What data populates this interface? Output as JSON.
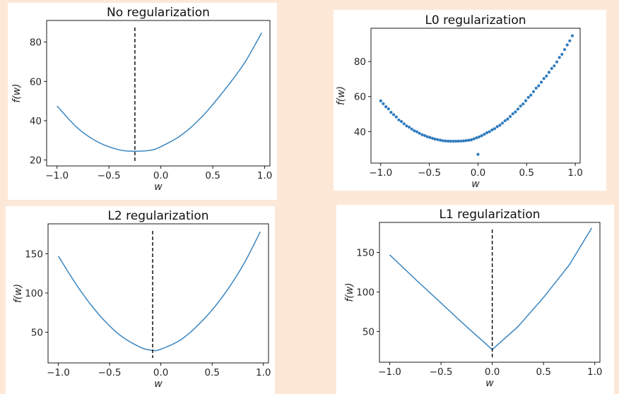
{
  "colors": {
    "background": "#fde8d8",
    "curve": "#3b86c0",
    "points": "#2f7bbd"
  },
  "chart_data": [
    {
      "id": "no-reg",
      "type": "line",
      "title": "No regularization",
      "xlabel": "w",
      "ylabel": "f(w)",
      "xlim": [
        -1.1,
        1.05
      ],
      "ylim": [
        17,
        91
      ],
      "xticks": [
        -1.0,
        -0.5,
        0.0,
        0.5,
        1.0
      ],
      "xtick_labels": [
        "−1.0",
        "−0.5",
        "0.0",
        "0.5",
        "1.0"
      ],
      "yticks": [
        20,
        40,
        60,
        80
      ],
      "ytick_labels": [
        "20",
        "40",
        "60",
        "80"
      ],
      "x": [
        -1.0,
        -0.8,
        -0.6,
        -0.4,
        -0.25,
        -0.1,
        0.0,
        0.2,
        0.4,
        0.6,
        0.8,
        0.97
      ],
      "y": [
        47.5,
        36.2,
        29.0,
        25.2,
        24.5,
        25.0,
        26.8,
        32.8,
        42.3,
        54.8,
        69.0,
        84.7
      ],
      "vline_x": -0.25
    },
    {
      "id": "l0-reg",
      "type": "scatter",
      "title": "L0 regularization",
      "xlabel": "w",
      "ylabel": "f(w)",
      "xlim": [
        -1.1,
        1.05
      ],
      "ylim": [
        22,
        99
      ],
      "xticks": [
        -1.0,
        -0.5,
        0.0,
        0.5,
        1.0
      ],
      "xtick_labels": [
        "−1.0",
        "−0.5",
        "0.0",
        "0.5",
        "1.0"
      ],
      "yticks": [
        40,
        60,
        80
      ],
      "ytick_labels": [
        "40",
        "60",
        "80"
      ],
      "x": [
        -1.0,
        -0.8,
        -0.6,
        -0.4,
        -0.25,
        -0.1,
        0.0,
        0.2,
        0.4,
        0.6,
        0.8,
        0.97
      ],
      "y": [
        57.5,
        46.2,
        39.0,
        35.2,
        34.5,
        35.0,
        36.8,
        42.8,
        52.3,
        64.8,
        79.0,
        94.7
      ],
      "outlier": {
        "x": 0.0,
        "y": 27.0
      },
      "n_points": 75
    },
    {
      "id": "l2-reg",
      "type": "line",
      "title": "L2 regularization",
      "xlabel": "w",
      "ylabel": "f(w)",
      "xlim": [
        -1.1,
        1.05
      ],
      "ylim": [
        11,
        188
      ],
      "xticks": [
        -1.0,
        -0.5,
        0.0,
        0.5,
        1.0
      ],
      "xtick_labels": [
        "−1.0",
        "−0.5",
        "0.0",
        "0.5",
        "1.0"
      ],
      "yticks": [
        50,
        100,
        150
      ],
      "ytick_labels": [
        "50",
        "100",
        "150"
      ],
      "x": [
        -1.0,
        -0.8,
        -0.6,
        -0.4,
        -0.2,
        -0.08,
        0.0,
        0.2,
        0.4,
        0.6,
        0.8,
        0.97
      ],
      "y": [
        147,
        106,
        72,
        46.5,
        31,
        27,
        28.5,
        41,
        64,
        95,
        135,
        178
      ],
      "vline_x": -0.08
    },
    {
      "id": "l1-reg",
      "type": "line",
      "title": "L1 regularization",
      "xlabel": "w",
      "ylabel": "f(w)",
      "xlim": [
        -1.1,
        1.05
      ],
      "ylim": [
        11,
        188
      ],
      "xticks": [
        -1.0,
        -0.5,
        0.0,
        0.5,
        1.0
      ],
      "xtick_labels": [
        "−1.0",
        "−0.5",
        "0.0",
        "0.5",
        "1.0"
      ],
      "yticks": [
        50,
        100,
        150
      ],
      "ytick_labels": [
        "50",
        "100",
        "150"
      ],
      "x": [
        -1.0,
        -0.75,
        -0.5,
        -0.25,
        0.0,
        0.25,
        0.5,
        0.75,
        0.97
      ],
      "y": [
        147,
        116,
        86,
        56,
        27,
        56,
        93,
        134,
        181
      ],
      "vline_x": 0.0
    }
  ]
}
